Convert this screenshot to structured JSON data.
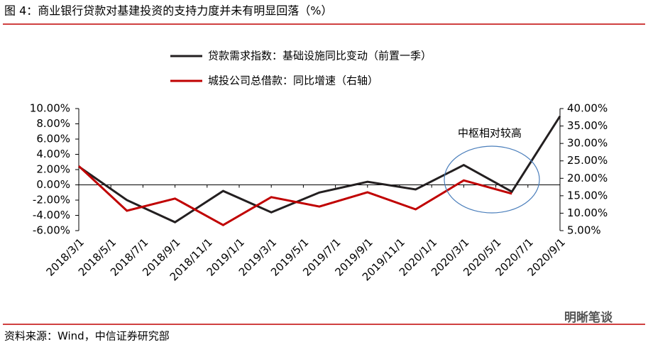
{
  "title": "图 4：商业银行贷款对基建投资的支持力度并未有明显回落（%）",
  "source": "资料来源：Wind，中信证券研究部",
  "watermark": "明晰笔谈",
  "chart_data": {
    "type": "line",
    "annotation": "中枢相对较高",
    "legend": "top",
    "xticks": [
      "2018/3/1",
      "2018/5/1",
      "2018/7/1",
      "2018/9/1",
      "2018/11/1",
      "2019/1/1",
      "2019/3/1",
      "2019/5/1",
      "2019/7/1",
      "2019/9/1",
      "2019/11/1",
      "2020/1/1",
      "2020/3/1",
      "2020/5/1",
      "2020/7/1",
      "2020/9/1"
    ],
    "ylim": [
      -6,
      10
    ],
    "yticks": [
      {
        "value": -6,
        "label": "-6.00%"
      },
      {
        "value": -4,
        "label": "-4.00%"
      },
      {
        "value": -2,
        "label": "-2.00%"
      },
      {
        "value": 0,
        "label": "0.00%"
      },
      {
        "value": 2,
        "label": "2.00%"
      },
      {
        "value": 4,
        "label": "4.00%"
      },
      {
        "value": 6,
        "label": "6.00%"
      },
      {
        "value": 8,
        "label": "8.00%"
      },
      {
        "value": 10,
        "label": "10.00%"
      }
    ],
    "y2lim": [
      5,
      40
    ],
    "y2ticks": [
      {
        "value": 5,
        "label": "5.00%"
      },
      {
        "value": 10,
        "label": "10.00%"
      },
      {
        "value": 15,
        "label": "15.00%"
      },
      {
        "value": 20,
        "label": "20.00%"
      },
      {
        "value": 25,
        "label": "25.00%"
      },
      {
        "value": 30,
        "label": "30.00%"
      },
      {
        "value": 35,
        "label": "35.00%"
      },
      {
        "value": 40,
        "label": "40.00%"
      }
    ],
    "series": [
      {
        "name": "贷款需求指数：基础设施同比变动（前置一季）",
        "color": "#231f20",
        "x": [
          "2018/3/1",
          "2018/6/1",
          "2018/9/1",
          "2018/12/1",
          "2019/3/1",
          "2019/6/1",
          "2019/9/1",
          "2019/12/1",
          "2020/3/1",
          "2020/6/1",
          "2020/9/1"
        ],
        "values": [
          2.4,
          -2.0,
          -4.9,
          -0.8,
          -3.6,
          -1.0,
          0.4,
          -0.6,
          2.6,
          -0.9,
          9.0
        ]
      },
      {
        "name": "城投公司总借款：同比增速（右轴）",
        "color": "#c00000",
        "axis": "y2",
        "x": [
          "2018/3/1",
          "2018/6/1",
          "2018/9/1",
          "2018/12/1",
          "2019/3/1",
          "2019/6/1",
          "2019/9/1",
          "2019/12/1",
          "2020/3/1",
          "2020/6/1"
        ],
        "values": [
          23.5,
          10.7,
          14.2,
          6.6,
          14.6,
          11.9,
          16.0,
          11.1,
          19.4,
          15.6
        ]
      }
    ]
  }
}
